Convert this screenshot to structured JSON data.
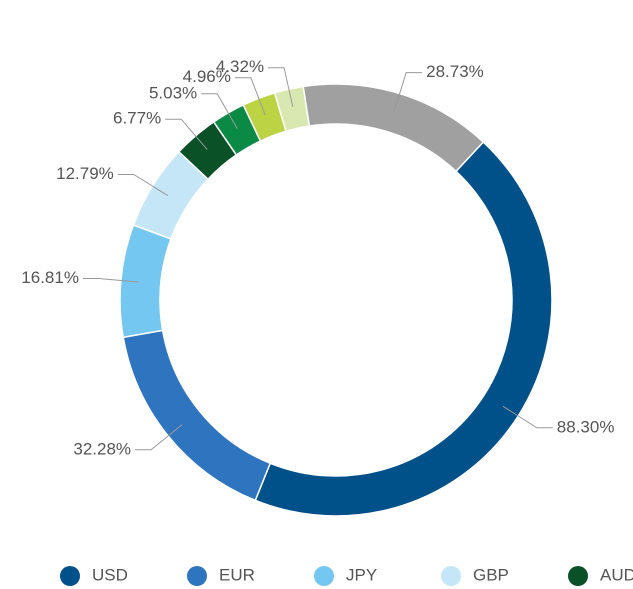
{
  "chart_data": {
    "type": "donut",
    "categories": [
      "USD",
      "EUR",
      "JPY",
      "GBP",
      "AUD",
      null,
      null,
      null,
      null
    ],
    "values": [
      88.3,
      32.28,
      16.81,
      12.79,
      6.77,
      5.03,
      4.96,
      4.32,
      28.73
    ],
    "value_labels": [
      "88.30%",
      "32.28%",
      "16.81%",
      "12.79%",
      "6.77%",
      "5.03%",
      "4.96%",
      "4.32%",
      "28.73%"
    ],
    "colors": [
      "#00508a",
      "#2e74bf",
      "#74c7f0",
      "#c5e6f7",
      "#0a5127",
      "#0a8a45",
      "#bcd444",
      "#d9e8b0",
      "#a0a0a0"
    ],
    "legend": "bottom"
  }
}
